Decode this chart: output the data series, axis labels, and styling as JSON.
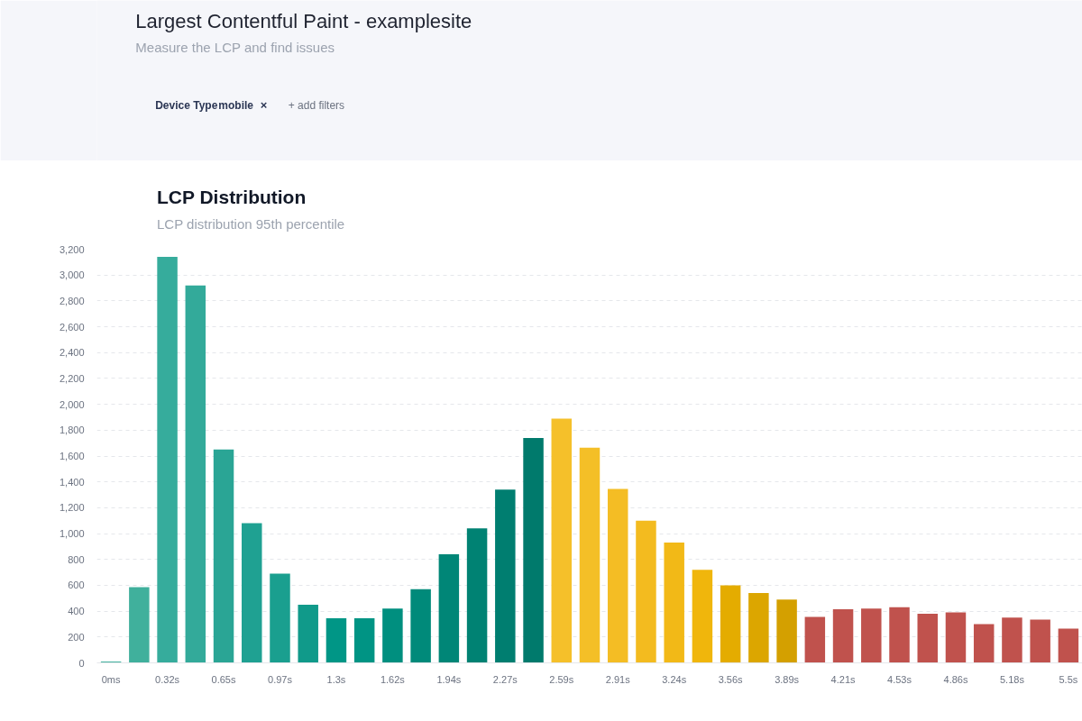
{
  "chart_data": {
    "type": "bar",
    "title": "LCP Distribution",
    "subtitle": "LCP distribution 95th percentile",
    "annotations": [
      "Largest Contentful Paint - examplesite",
      "Measure the LCP and find issues",
      "Device Type",
      "mobile",
      "×",
      "+ add filters"
    ],
    "categories": [
      "0ms",
      null,
      "0.32s",
      null,
      "0.65s",
      null,
      "0.97s",
      null,
      "1.3s",
      null,
      "1.62s",
      null,
      "1.94s",
      null,
      "2.27s",
      null,
      "2.59s",
      null,
      "2.91s",
      null,
      "3.24s",
      null,
      "3.56s",
      null,
      "3.89s",
      null,
      "4.21s",
      null,
      "4.53s",
      null,
      "4.86s",
      null,
      "5.18s",
      null,
      "5.5s"
    ],
    "values": [
      10,
      585,
      3140,
      2920,
      1650,
      1080,
      690,
      450,
      345,
      345,
      420,
      570,
      840,
      1040,
      1340,
      1740,
      1890,
      1665,
      1345,
      1100,
      930,
      720,
      600,
      540,
      490,
      355,
      415,
      420,
      430,
      380,
      390,
      300,
      350,
      335,
      265
    ],
    "colors": [
      "#45b3a0",
      "#40b09c",
      "#36ac9c",
      "#33aa9a",
      "#2aa595",
      "#1fa192",
      "#1a9f8f",
      "#109a8a",
      "#009686",
      "#009484",
      "#008f7f",
      "#008a7a",
      "#008677",
      "#008273",
      "#007e70",
      "#007a6c",
      "#f5c02a",
      "#f4bf27",
      "#f4bd24",
      "#f3bb1f",
      "#f2b917",
      "#f0b60c",
      "#e4ac00",
      "#dca600",
      "#d4a000",
      "#c0524d",
      "#c0524d",
      "#c0524d",
      "#c0524d",
      "#c0524d",
      "#c0524d",
      "#c0524d",
      "#c0524d",
      "#c0524d",
      "#c0524d"
    ],
    "ylim": [
      0,
      3200
    ],
    "yticks": [
      0,
      200,
      400,
      600,
      800,
      {
        "value": 1000,
        "label": "1,000"
      },
      {
        "value": 1200,
        "label": "1,200"
      },
      {
        "value": 1400,
        "label": "1,400"
      },
      {
        "value": 1600,
        "label": "1,600"
      },
      {
        "value": 1800,
        "label": "1,800"
      },
      {
        "value": 2000,
        "label": "2,000"
      },
      {
        "value": 2200,
        "label": "2,200"
      },
      {
        "value": 2400,
        "label": "2,400"
      },
      {
        "value": 2600,
        "label": "2,600"
      },
      {
        "value": 2800,
        "label": "2,800"
      },
      {
        "value": 3000,
        "label": "3,000"
      },
      {
        "value": 3200,
        "label": "3,200"
      }
    ],
    "grid": "y"
  }
}
